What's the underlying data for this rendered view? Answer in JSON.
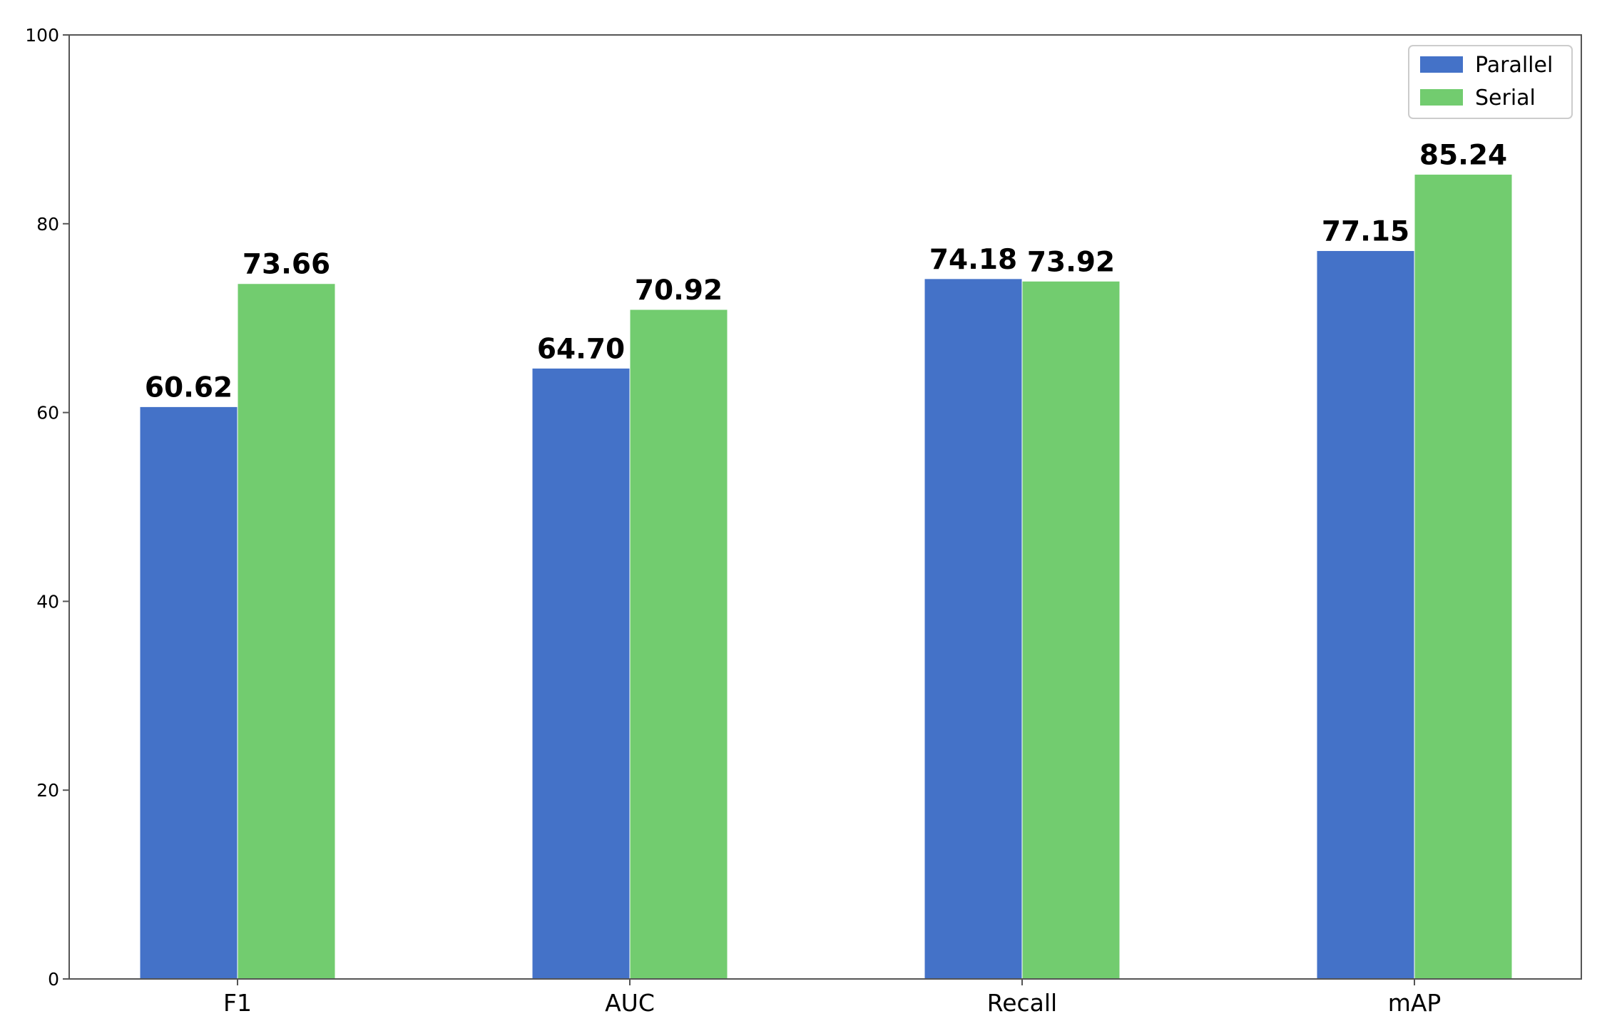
{
  "chart_data": {
    "type": "bar",
    "categories": [
      "F1",
      "AUC",
      "Recall",
      "mAP"
    ],
    "series": [
      {
        "name": "Parallel",
        "color": "#4472C8",
        "values": [
          60.62,
          64.7,
          74.18,
          77.15
        ],
        "labels": [
          "60.62",
          "64.70",
          "74.18",
          "77.15"
        ]
      },
      {
        "name": "Serial",
        "color": "#72CC6F",
        "values": [
          73.66,
          70.92,
          73.92,
          85.24
        ],
        "labels": [
          "73.66",
          "70.92",
          "73.92",
          "85.24"
        ]
      }
    ],
    "yticks": [
      0,
      20,
      40,
      60,
      80,
      100
    ],
    "ylim": [
      0,
      100
    ],
    "title": "",
    "xlabel": "",
    "ylabel": "",
    "legend": "top-right",
    "grid": false
  }
}
